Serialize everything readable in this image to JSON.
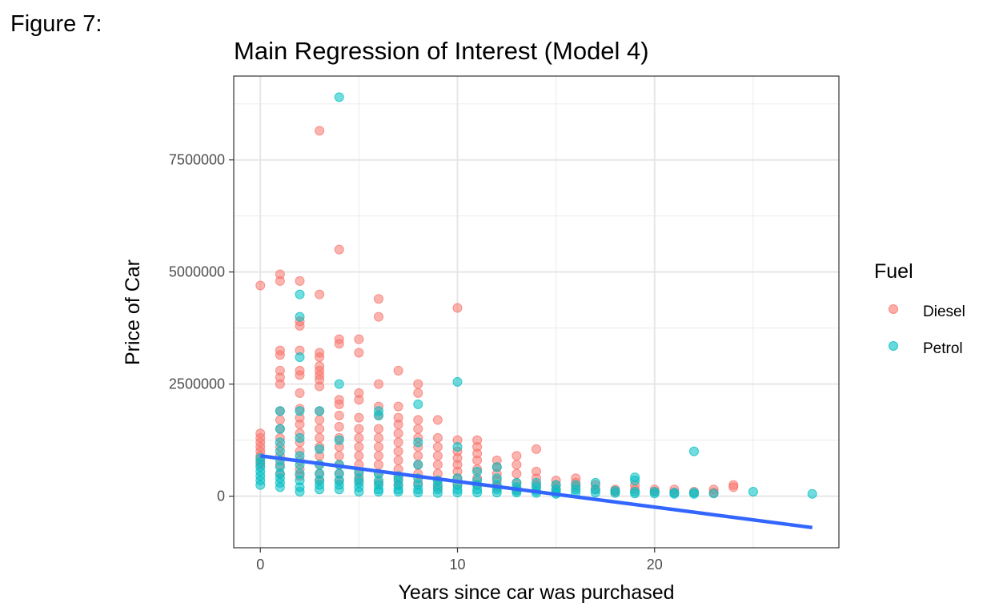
{
  "figure_label": "Figure 7:",
  "chart_data": {
    "type": "scatter",
    "title": "Main Regression of Interest (Model 4)",
    "xlabel": "Years since car was purchased",
    "ylabel": "Price of Car",
    "xlim": [
      -1.35,
      29.35
    ],
    "ylim": [
      -1150000,
      9370000
    ],
    "x_ticks": [
      0,
      10,
      20
    ],
    "x_tick_labels": [
      "0",
      "10",
      "20"
    ],
    "y_ticks": [
      0,
      2500000,
      5000000,
      7500000
    ],
    "y_tick_labels": [
      "0",
      "2500000",
      "5000000",
      "7500000"
    ],
    "grid": true,
    "legend": {
      "title": "Fuel",
      "position": "right",
      "entries": [
        {
          "label": "Diesel",
          "color": "#F8766D"
        },
        {
          "label": "Petrol",
          "color": "#00BFC4"
        }
      ]
    },
    "series": [
      {
        "name": "Diesel",
        "color": "#F8766D",
        "points": [
          [
            0,
            4700000
          ],
          [
            0,
            1400000
          ],
          [
            0,
            1300000
          ],
          [
            0,
            1200000
          ],
          [
            0,
            1100000
          ],
          [
            0,
            1000000
          ],
          [
            0,
            900000
          ],
          [
            0,
            800000
          ],
          [
            0,
            700000
          ],
          [
            1,
            4950000
          ],
          [
            1,
            4800000
          ],
          [
            1,
            3250000
          ],
          [
            1,
            3150000
          ],
          [
            1,
            2800000
          ],
          [
            1,
            2650000
          ],
          [
            1,
            2500000
          ],
          [
            1,
            1900000
          ],
          [
            1,
            1700000
          ],
          [
            1,
            1500000
          ],
          [
            1,
            1300000
          ],
          [
            1,
            1100000
          ],
          [
            1,
            900000
          ],
          [
            1,
            700000
          ],
          [
            1,
            500000
          ],
          [
            2,
            4800000
          ],
          [
            2,
            3900000
          ],
          [
            2,
            3800000
          ],
          [
            2,
            3250000
          ],
          [
            2,
            2800000
          ],
          [
            2,
            2700000
          ],
          [
            2,
            2300000
          ],
          [
            2,
            1950000
          ],
          [
            2,
            1750000
          ],
          [
            2,
            1600000
          ],
          [
            2,
            1400000
          ],
          [
            2,
            1200000
          ],
          [
            2,
            1000000
          ],
          [
            2,
            800000
          ],
          [
            2,
            600000
          ],
          [
            2,
            450000
          ],
          [
            3,
            8150000
          ],
          [
            3,
            4500000
          ],
          [
            3,
            3200000
          ],
          [
            3,
            3100000
          ],
          [
            3,
            2900000
          ],
          [
            3,
            2800000
          ],
          [
            3,
            2700000
          ],
          [
            3,
            2600000
          ],
          [
            3,
            2450000
          ],
          [
            3,
            1900000
          ],
          [
            3,
            1700000
          ],
          [
            3,
            1500000
          ],
          [
            3,
            1300000
          ],
          [
            3,
            1100000
          ],
          [
            3,
            900000
          ],
          [
            3,
            700000
          ],
          [
            3,
            500000
          ],
          [
            3,
            350000
          ],
          [
            4,
            5500000
          ],
          [
            4,
            3500000
          ],
          [
            4,
            3400000
          ],
          [
            4,
            2150000
          ],
          [
            4,
            2050000
          ],
          [
            4,
            1800000
          ],
          [
            4,
            1550000
          ],
          [
            4,
            1300000
          ],
          [
            4,
            1100000
          ],
          [
            4,
            900000
          ],
          [
            4,
            700000
          ],
          [
            4,
            500000
          ],
          [
            4,
            350000
          ],
          [
            5,
            3500000
          ],
          [
            5,
            3200000
          ],
          [
            5,
            2300000
          ],
          [
            5,
            2150000
          ],
          [
            5,
            1750000
          ],
          [
            5,
            1500000
          ],
          [
            5,
            1300000
          ],
          [
            5,
            1100000
          ],
          [
            5,
            900000
          ],
          [
            5,
            700000
          ],
          [
            5,
            500000
          ],
          [
            5,
            350000
          ],
          [
            6,
            4400000
          ],
          [
            6,
            4000000
          ],
          [
            6,
            2500000
          ],
          [
            6,
            2000000
          ],
          [
            6,
            1800000
          ],
          [
            6,
            1500000
          ],
          [
            6,
            1300000
          ],
          [
            6,
            1100000
          ],
          [
            6,
            900000
          ],
          [
            6,
            700000
          ],
          [
            6,
            500000
          ],
          [
            6,
            300000
          ],
          [
            7,
            2800000
          ],
          [
            7,
            2000000
          ],
          [
            7,
            1750000
          ],
          [
            7,
            1600000
          ],
          [
            7,
            1400000
          ],
          [
            7,
            1200000
          ],
          [
            7,
            1000000
          ],
          [
            7,
            800000
          ],
          [
            7,
            600000
          ],
          [
            7,
            400000
          ],
          [
            7,
            250000
          ],
          [
            8,
            2500000
          ],
          [
            8,
            2300000
          ],
          [
            8,
            1700000
          ],
          [
            8,
            1500000
          ],
          [
            8,
            1300000
          ],
          [
            8,
            1100000
          ],
          [
            8,
            900000
          ],
          [
            8,
            700000
          ],
          [
            8,
            500000
          ],
          [
            8,
            300000
          ],
          [
            9,
            1700000
          ],
          [
            9,
            1300000
          ],
          [
            9,
            1100000
          ],
          [
            9,
            900000
          ],
          [
            9,
            700000
          ],
          [
            9,
            500000
          ],
          [
            9,
            350000
          ],
          [
            9,
            200000
          ],
          [
            10,
            4200000
          ],
          [
            10,
            1250000
          ],
          [
            10,
            1000000
          ],
          [
            10,
            850000
          ],
          [
            10,
            700000
          ],
          [
            10,
            550000
          ],
          [
            10,
            400000
          ],
          [
            10,
            250000
          ],
          [
            11,
            1250000
          ],
          [
            11,
            1100000
          ],
          [
            11,
            950000
          ],
          [
            11,
            800000
          ],
          [
            11,
            600000
          ],
          [
            11,
            400000
          ],
          [
            11,
            250000
          ],
          [
            12,
            800000
          ],
          [
            12,
            650000
          ],
          [
            12,
            500000
          ],
          [
            12,
            350000
          ],
          [
            12,
            200000
          ],
          [
            13,
            900000
          ],
          [
            13,
            700000
          ],
          [
            13,
            500000
          ],
          [
            13,
            300000
          ],
          [
            13,
            150000
          ],
          [
            14,
            1050000
          ],
          [
            14,
            550000
          ],
          [
            14,
            400000
          ],
          [
            14,
            250000
          ],
          [
            15,
            350000
          ],
          [
            15,
            250000
          ],
          [
            15,
            150000
          ],
          [
            16,
            400000
          ],
          [
            16,
            300000
          ],
          [
            16,
            200000
          ],
          [
            17,
            250000
          ],
          [
            17,
            150000
          ],
          [
            18,
            150000
          ],
          [
            18,
            100000
          ],
          [
            19,
            250000
          ],
          [
            19,
            150000
          ],
          [
            20,
            150000
          ],
          [
            20,
            100000
          ],
          [
            21,
            150000
          ],
          [
            21,
            80000
          ],
          [
            22,
            100000
          ],
          [
            23,
            150000
          ],
          [
            23,
            80000
          ],
          [
            24,
            250000
          ],
          [
            24,
            200000
          ]
        ]
      },
      {
        "name": "Petrol",
        "color": "#00BFC4",
        "points": [
          [
            0,
            850000
          ],
          [
            0,
            750000
          ],
          [
            0,
            650000
          ],
          [
            0,
            550000
          ],
          [
            0,
            450000
          ],
          [
            0,
            350000
          ],
          [
            0,
            250000
          ],
          [
            1,
            1900000
          ],
          [
            1,
            1500000
          ],
          [
            1,
            1200000
          ],
          [
            1,
            1000000
          ],
          [
            1,
            800000
          ],
          [
            1,
            650000
          ],
          [
            1,
            500000
          ],
          [
            1,
            400000
          ],
          [
            1,
            300000
          ],
          [
            1,
            200000
          ],
          [
            2,
            4500000
          ],
          [
            2,
            4000000
          ],
          [
            2,
            3100000
          ],
          [
            2,
            1900000
          ],
          [
            2,
            1300000
          ],
          [
            2,
            900000
          ],
          [
            2,
            700000
          ],
          [
            2,
            500000
          ],
          [
            2,
            350000
          ],
          [
            2,
            200000
          ],
          [
            2,
            100000
          ],
          [
            3,
            1900000
          ],
          [
            3,
            1050000
          ],
          [
            3,
            700000
          ],
          [
            3,
            500000
          ],
          [
            3,
            350000
          ],
          [
            3,
            250000
          ],
          [
            3,
            150000
          ],
          [
            4,
            8900000
          ],
          [
            4,
            2500000
          ],
          [
            4,
            1250000
          ],
          [
            4,
            700000
          ],
          [
            4,
            500000
          ],
          [
            4,
            350000
          ],
          [
            4,
            250000
          ],
          [
            4,
            150000
          ],
          [
            5,
            550000
          ],
          [
            5,
            400000
          ],
          [
            5,
            300000
          ],
          [
            5,
            200000
          ],
          [
            5,
            100000
          ],
          [
            6,
            1900000
          ],
          [
            6,
            1800000
          ],
          [
            6,
            500000
          ],
          [
            6,
            350000
          ],
          [
            6,
            250000
          ],
          [
            6,
            150000
          ],
          [
            6,
            100000
          ],
          [
            7,
            450000
          ],
          [
            7,
            350000
          ],
          [
            7,
            250000
          ],
          [
            7,
            150000
          ],
          [
            7,
            100000
          ],
          [
            8,
            2050000
          ],
          [
            8,
            1200000
          ],
          [
            8,
            700000
          ],
          [
            8,
            400000
          ],
          [
            8,
            250000
          ],
          [
            8,
            150000
          ],
          [
            8,
            80000
          ],
          [
            9,
            350000
          ],
          [
            9,
            250000
          ],
          [
            9,
            150000
          ],
          [
            9,
            70000
          ],
          [
            10,
            2550000
          ],
          [
            10,
            1100000
          ],
          [
            10,
            400000
          ],
          [
            10,
            250000
          ],
          [
            10,
            150000
          ],
          [
            10,
            80000
          ],
          [
            11,
            550000
          ],
          [
            11,
            350000
          ],
          [
            11,
            250000
          ],
          [
            11,
            150000
          ],
          [
            11,
            80000
          ],
          [
            12,
            650000
          ],
          [
            12,
            400000
          ],
          [
            12,
            250000
          ],
          [
            12,
            150000
          ],
          [
            12,
            80000
          ],
          [
            13,
            300000
          ],
          [
            13,
            200000
          ],
          [
            13,
            120000
          ],
          [
            13,
            80000
          ],
          [
            14,
            300000
          ],
          [
            14,
            200000
          ],
          [
            14,
            120000
          ],
          [
            14,
            70000
          ],
          [
            15,
            250000
          ],
          [
            15,
            150000
          ],
          [
            15,
            80000
          ],
          [
            15,
            50000
          ],
          [
            16,
            250000
          ],
          [
            16,
            150000
          ],
          [
            16,
            80000
          ],
          [
            17,
            300000
          ],
          [
            17,
            150000
          ],
          [
            17,
            80000
          ],
          [
            18,
            120000
          ],
          [
            18,
            70000
          ],
          [
            19,
            420000
          ],
          [
            19,
            350000
          ],
          [
            19,
            100000
          ],
          [
            19,
            60000
          ],
          [
            20,
            100000
          ],
          [
            20,
            60000
          ],
          [
            21,
            80000
          ],
          [
            21,
            50000
          ],
          [
            22,
            1000000
          ],
          [
            22,
            80000
          ],
          [
            22,
            50000
          ],
          [
            23,
            60000
          ],
          [
            25,
            100000
          ],
          [
            28,
            50000
          ]
        ]
      }
    ],
    "regression_line": {
      "color": "#3366FF",
      "x": [
        0,
        28
      ],
      "y": [
        900000,
        -700000
      ]
    }
  }
}
